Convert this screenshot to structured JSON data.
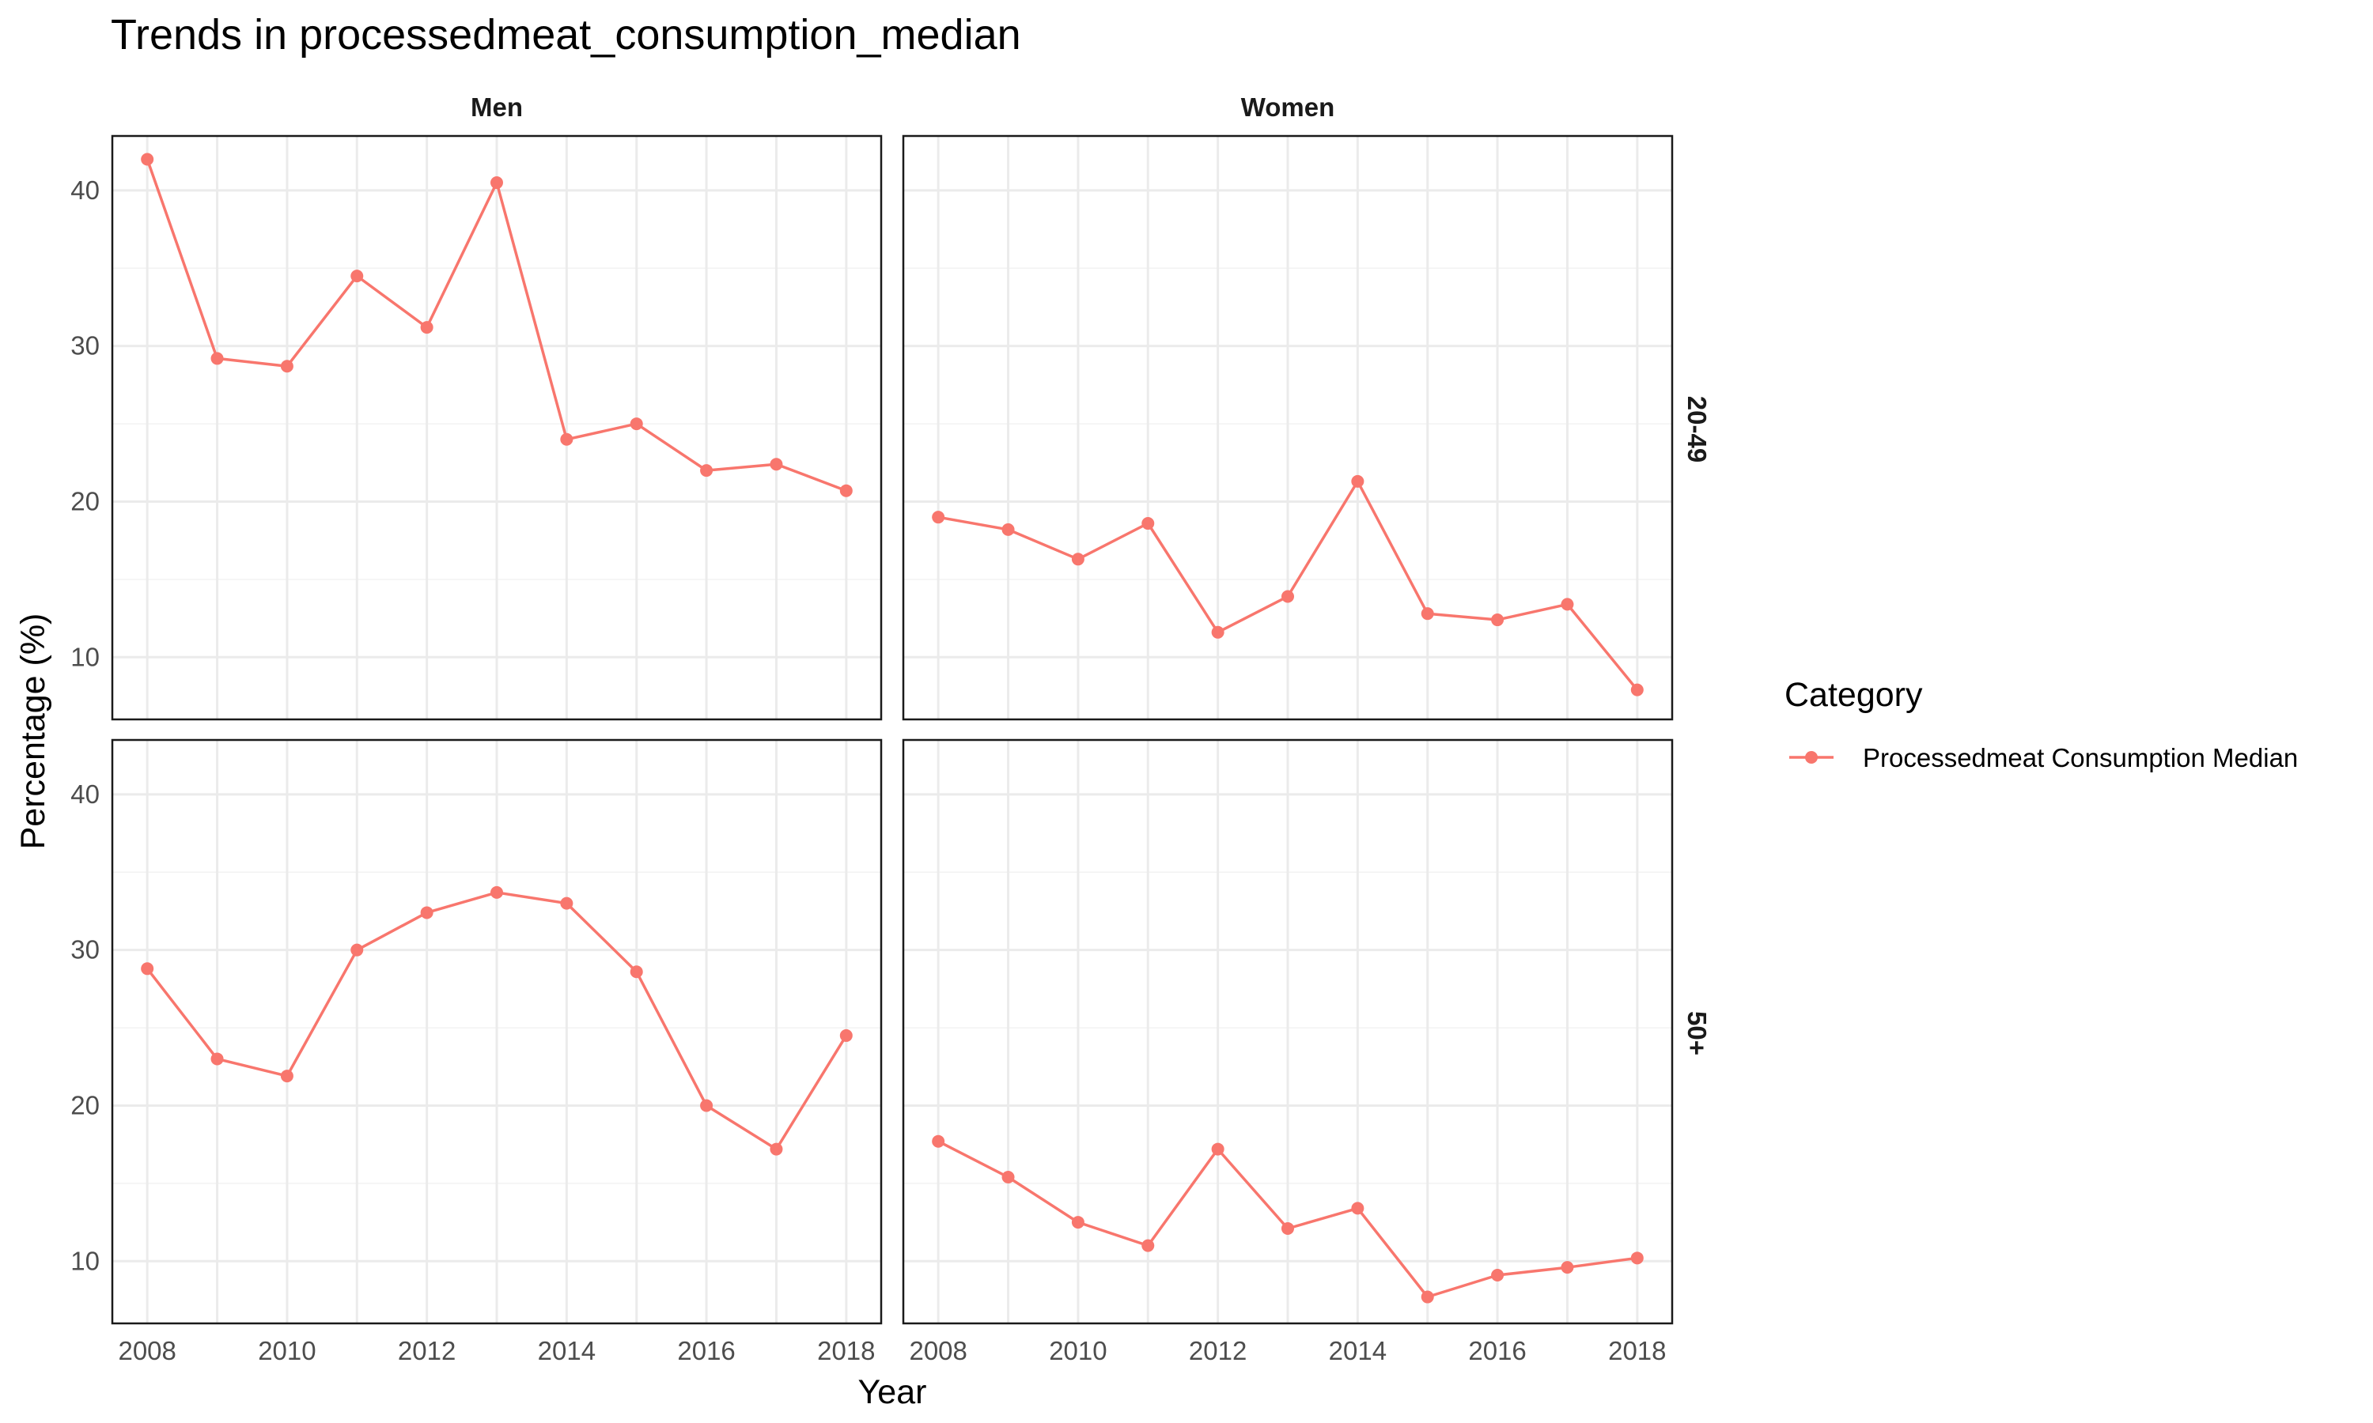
{
  "chart_data": {
    "type": "line",
    "title": "Trends in processedmeat_consumption_median",
    "xlabel": "Year",
    "ylabel": "Percentage (%)",
    "facet_columns": [
      "Men",
      "Women"
    ],
    "facet_rows": [
      "20-49",
      "50+"
    ],
    "x": [
      2008,
      2009,
      2010,
      2011,
      2012,
      2013,
      2014,
      2015,
      2016,
      2017,
      2018
    ],
    "x_ticks": [
      2008,
      2010,
      2012,
      2014,
      2016,
      2018
    ],
    "y_ticks": [
      10,
      20,
      30,
      40
    ],
    "ylim": [
      6,
      43.5
    ],
    "xlim": [
      2007.5,
      2018.5
    ],
    "grid": true,
    "legend": {
      "title": "Category",
      "position": "right",
      "entries": [
        {
          "name": "Processedmeat Consumption Median",
          "color": "#f8766d"
        }
      ]
    },
    "panels": [
      {
        "column": "Men",
        "row": "20-49",
        "series": [
          {
            "name": "Processedmeat Consumption Median",
            "values": [
              42.0,
              29.2,
              28.7,
              34.5,
              31.2,
              40.5,
              24.0,
              25.0,
              22.0,
              22.4,
              20.7
            ]
          }
        ]
      },
      {
        "column": "Women",
        "row": "20-49",
        "series": [
          {
            "name": "Processedmeat Consumption Median",
            "values": [
              19.0,
              18.2,
              16.3,
              18.6,
              11.6,
              13.9,
              21.3,
              12.8,
              12.4,
              13.4,
              7.9
            ]
          }
        ]
      },
      {
        "column": "Men",
        "row": "50+",
        "series": [
          {
            "name": "Processedmeat Consumption Median",
            "values": [
              28.8,
              23.0,
              21.9,
              30.0,
              32.4,
              33.7,
              33.0,
              28.6,
              20.0,
              17.2,
              24.5
            ]
          }
        ]
      },
      {
        "column": "Women",
        "row": "50+",
        "series": [
          {
            "name": "Processedmeat Consumption Median",
            "values": [
              17.7,
              15.4,
              12.5,
              11.0,
              17.2,
              12.1,
              13.4,
              7.7,
              9.1,
              9.6,
              10.2
            ]
          }
        ]
      }
    ]
  }
}
